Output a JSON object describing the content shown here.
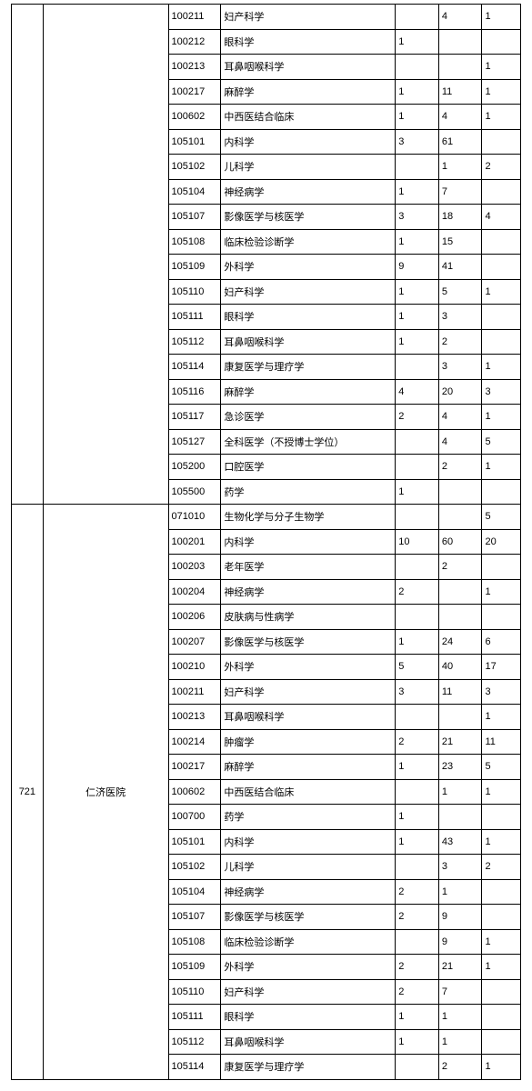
{
  "groups": [
    {
      "id": "",
      "hospital": "",
      "rows": [
        {
          "code": "100211",
          "name": "妇产科学",
          "a": "",
          "b": "4",
          "c": "1"
        },
        {
          "code": "100212",
          "name": "眼科学",
          "a": "1",
          "b": "",
          "c": ""
        },
        {
          "code": "100213",
          "name": "耳鼻咽喉科学",
          "a": "",
          "b": "",
          "c": "1"
        },
        {
          "code": "100217",
          "name": "麻醉学",
          "a": "1",
          "b": "11",
          "c": "1"
        },
        {
          "code": "100602",
          "name": "中西医结合临床",
          "a": "1",
          "b": "4",
          "c": "1"
        },
        {
          "code": "105101",
          "name": "内科学",
          "a": "3",
          "b": "61",
          "c": ""
        },
        {
          "code": "105102",
          "name": "儿科学",
          "a": "",
          "b": "1",
          "c": "2"
        },
        {
          "code": "105104",
          "name": "神经病学",
          "a": "1",
          "b": "7",
          "c": ""
        },
        {
          "code": "105107",
          "name": "影像医学与核医学",
          "a": "3",
          "b": "18",
          "c": "4"
        },
        {
          "code": "105108",
          "name": "临床检验诊断学",
          "a": "1",
          "b": "15",
          "c": ""
        },
        {
          "code": "105109",
          "name": "外科学",
          "a": "9",
          "b": "41",
          "c": ""
        },
        {
          "code": "105110",
          "name": "妇产科学",
          "a": "1",
          "b": "5",
          "c": "1"
        },
        {
          "code": "105111",
          "name": "眼科学",
          "a": "1",
          "b": "3",
          "c": ""
        },
        {
          "code": "105112",
          "name": "耳鼻咽喉科学",
          "a": "1",
          "b": "2",
          "c": ""
        },
        {
          "code": "105114",
          "name": "康复医学与理疗学",
          "a": "",
          "b": "3",
          "c": "1"
        },
        {
          "code": "105116",
          "name": "麻醉学",
          "a": "4",
          "b": "20",
          "c": "3"
        },
        {
          "code": "105117",
          "name": "急诊医学",
          "a": "2",
          "b": "4",
          "c": "1"
        },
        {
          "code": "105127",
          "name": "全科医学（不授博士学位）",
          "a": "",
          "b": "4",
          "c": "5"
        },
        {
          "code": "105200",
          "name": "口腔医学",
          "a": "",
          "b": "2",
          "c": "1"
        },
        {
          "code": "105500",
          "name": "药学",
          "a": "1",
          "b": "",
          "c": ""
        }
      ]
    },
    {
      "id": "721",
      "hospital": "仁济医院",
      "rows": [
        {
          "code": "071010",
          "name": "生物化学与分子生物学",
          "a": "",
          "b": "",
          "c": "5"
        },
        {
          "code": "100201",
          "name": "内科学",
          "a": "10",
          "b": "60",
          "c": "20"
        },
        {
          "code": "100203",
          "name": "老年医学",
          "a": "",
          "b": "2",
          "c": ""
        },
        {
          "code": "100204",
          "name": "神经病学",
          "a": "2",
          "b": "",
          "c": "1"
        },
        {
          "code": "100206",
          "name": "皮肤病与性病学",
          "a": "",
          "b": "",
          "c": ""
        },
        {
          "code": "100207",
          "name": "影像医学与核医学",
          "a": "1",
          "b": "24",
          "c": "6"
        },
        {
          "code": "100210",
          "name": "外科学",
          "a": "5",
          "b": "40",
          "c": "17"
        },
        {
          "code": "100211",
          "name": "妇产科学",
          "a": "3",
          "b": "11",
          "c": "3"
        },
        {
          "code": "100213",
          "name": "耳鼻咽喉科学",
          "a": "",
          "b": "",
          "c": "1"
        },
        {
          "code": "100214",
          "name": "肿瘤学",
          "a": "2",
          "b": "21",
          "c": "11"
        },
        {
          "code": "100217",
          "name": "麻醉学",
          "a": "1",
          "b": "23",
          "c": "5"
        },
        {
          "code": "100602",
          "name": "中西医结合临床",
          "a": "",
          "b": "1",
          "c": "1"
        },
        {
          "code": "100700",
          "name": "药学",
          "a": "1",
          "b": "",
          "c": ""
        },
        {
          "code": "105101",
          "name": "内科学",
          "a": "1",
          "b": "43",
          "c": "1"
        },
        {
          "code": "105102",
          "name": "儿科学",
          "a": "",
          "b": "3",
          "c": "2"
        },
        {
          "code": "105104",
          "name": "神经病学",
          "a": "2",
          "b": "1",
          "c": ""
        },
        {
          "code": "105107",
          "name": "影像医学与核医学",
          "a": "2",
          "b": "9",
          "c": ""
        },
        {
          "code": "105108",
          "name": "临床检验诊断学",
          "a": "",
          "b": "9",
          "c": "1"
        },
        {
          "code": "105109",
          "name": "外科学",
          "a": "2",
          "b": "21",
          "c": "1"
        },
        {
          "code": "105110",
          "name": "妇产科学",
          "a": "2",
          "b": "7",
          "c": ""
        },
        {
          "code": "105111",
          "name": "眼科学",
          "a": "1",
          "b": "1",
          "c": ""
        },
        {
          "code": "105112",
          "name": "耳鼻咽喉科学",
          "a": "1",
          "b": "1",
          "c": ""
        },
        {
          "code": "105114",
          "name": "康复医学与理疗学",
          "a": "",
          "b": "2",
          "c": "1"
        }
      ]
    }
  ]
}
